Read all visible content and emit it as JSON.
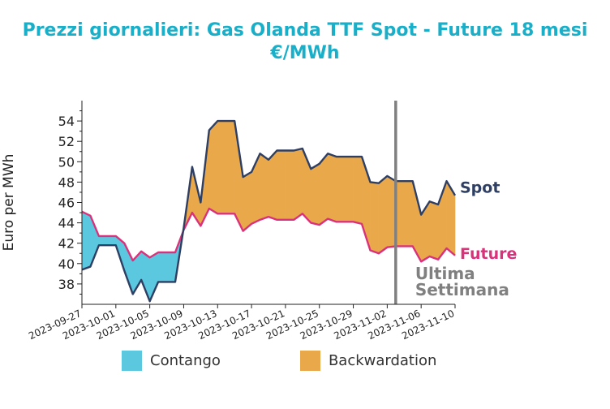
{
  "title": {
    "line1": "Prezzi giornalieri: Gas Olanda TTF Spot - Future 18 mesi",
    "line2": "€/MWh"
  },
  "colors": {
    "title": "#1aafc9",
    "spot": "#2e3f63",
    "future": "#d9327a",
    "contango": "#5bc8df",
    "backwardation": "#e9a94b",
    "marker": "#808080"
  },
  "chart_data": {
    "type": "area",
    "ylabel": "Euro per MWh",
    "ylim": [
      36,
      56
    ],
    "yticks": [
      38,
      40,
      42,
      44,
      46,
      48,
      50,
      52,
      54
    ],
    "x_ticks": [
      "2023-09-27",
      "2023-10-01",
      "2023-10-05",
      "2023-10-09",
      "2023-10-13",
      "2023-10-17",
      "2023-10-21",
      "2023-10-25",
      "2023-10-29",
      "2023-11-02",
      "2023-11-06",
      "2023-11-10"
    ],
    "x_range": [
      "2023-09-27",
      "2023-11-10"
    ],
    "series": [
      {
        "name": "Spot",
        "x": [
          "2023-09-27",
          "2023-09-28",
          "2023-09-29",
          "2023-09-30",
          "2023-10-01",
          "2023-10-02",
          "2023-10-03",
          "2023-10-04",
          "2023-10-05",
          "2023-10-06",
          "2023-10-07",
          "2023-10-08",
          "2023-10-09",
          "2023-10-10",
          "2023-10-11",
          "2023-10-12",
          "2023-10-13",
          "2023-10-14",
          "2023-10-15",
          "2023-10-16",
          "2023-10-17",
          "2023-10-18",
          "2023-10-19",
          "2023-10-20",
          "2023-10-21",
          "2023-10-22",
          "2023-10-23",
          "2023-10-24",
          "2023-10-25",
          "2023-10-26",
          "2023-10-27",
          "2023-10-28",
          "2023-10-29",
          "2023-10-30",
          "2023-10-31",
          "2023-11-01",
          "2023-11-02",
          "2023-11-03",
          "2023-11-04",
          "2023-11-05",
          "2023-11-06",
          "2023-11-07",
          "2023-11-08",
          "2023-11-09",
          "2023-11-10"
        ],
        "values": [
          39.4,
          39.7,
          41.8,
          41.8,
          41.8,
          39.3,
          37.0,
          38.4,
          36.3,
          38.2,
          38.2,
          38.2,
          43.5,
          49.5,
          46.0,
          53.1,
          54.0,
          54.0,
          54.0,
          48.5,
          49.0,
          50.8,
          50.2,
          51.1,
          51.1,
          51.1,
          51.3,
          49.3,
          49.8,
          50.8,
          50.5,
          50.5,
          50.5,
          50.5,
          48.0,
          47.9,
          48.6,
          48.1,
          48.1,
          48.1,
          44.8,
          46.1,
          45.8,
          48.1,
          46.7
        ]
      },
      {
        "name": "Future",
        "x": [
          "2023-09-27",
          "2023-09-28",
          "2023-09-29",
          "2023-09-30",
          "2023-10-01",
          "2023-10-02",
          "2023-10-03",
          "2023-10-04",
          "2023-10-05",
          "2023-10-06",
          "2023-10-07",
          "2023-10-08",
          "2023-10-09",
          "2023-10-10",
          "2023-10-11",
          "2023-10-12",
          "2023-10-13",
          "2023-10-14",
          "2023-10-15",
          "2023-10-16",
          "2023-10-17",
          "2023-10-18",
          "2023-10-19",
          "2023-10-20",
          "2023-10-21",
          "2023-10-22",
          "2023-10-23",
          "2023-10-24",
          "2023-10-25",
          "2023-10-26",
          "2023-10-27",
          "2023-10-28",
          "2023-10-29",
          "2023-10-30",
          "2023-10-31",
          "2023-11-01",
          "2023-11-02",
          "2023-11-03",
          "2023-11-04",
          "2023-11-05",
          "2023-11-06",
          "2023-11-07",
          "2023-11-08",
          "2023-11-09",
          "2023-11-10"
        ],
        "values": [
          45.1,
          44.7,
          42.7,
          42.7,
          42.7,
          42.0,
          40.3,
          41.2,
          40.6,
          41.1,
          41.1,
          41.1,
          43.3,
          45.0,
          43.7,
          45.4,
          44.9,
          44.9,
          44.9,
          43.2,
          43.9,
          44.3,
          44.6,
          44.3,
          44.3,
          44.3,
          44.9,
          44.0,
          43.8,
          44.4,
          44.1,
          44.1,
          44.1,
          43.9,
          41.3,
          41.0,
          41.6,
          41.7,
          41.7,
          41.7,
          40.2,
          40.7,
          40.4,
          41.5,
          40.8
        ]
      }
    ],
    "fills": [
      {
        "name": "Contango",
        "condition": "Future > Spot"
      },
      {
        "name": "Backwardation",
        "condition": "Spot > Future"
      }
    ],
    "series_labels": {
      "spot": "Spot",
      "future": "Future"
    },
    "marker": {
      "x": "2023-11-03",
      "label_line1": "Ultima",
      "label_line2": "Settimana"
    },
    "legend": {
      "placement": "bottom",
      "items": [
        "Contango",
        "Backwardation"
      ]
    },
    "grid": false
  }
}
